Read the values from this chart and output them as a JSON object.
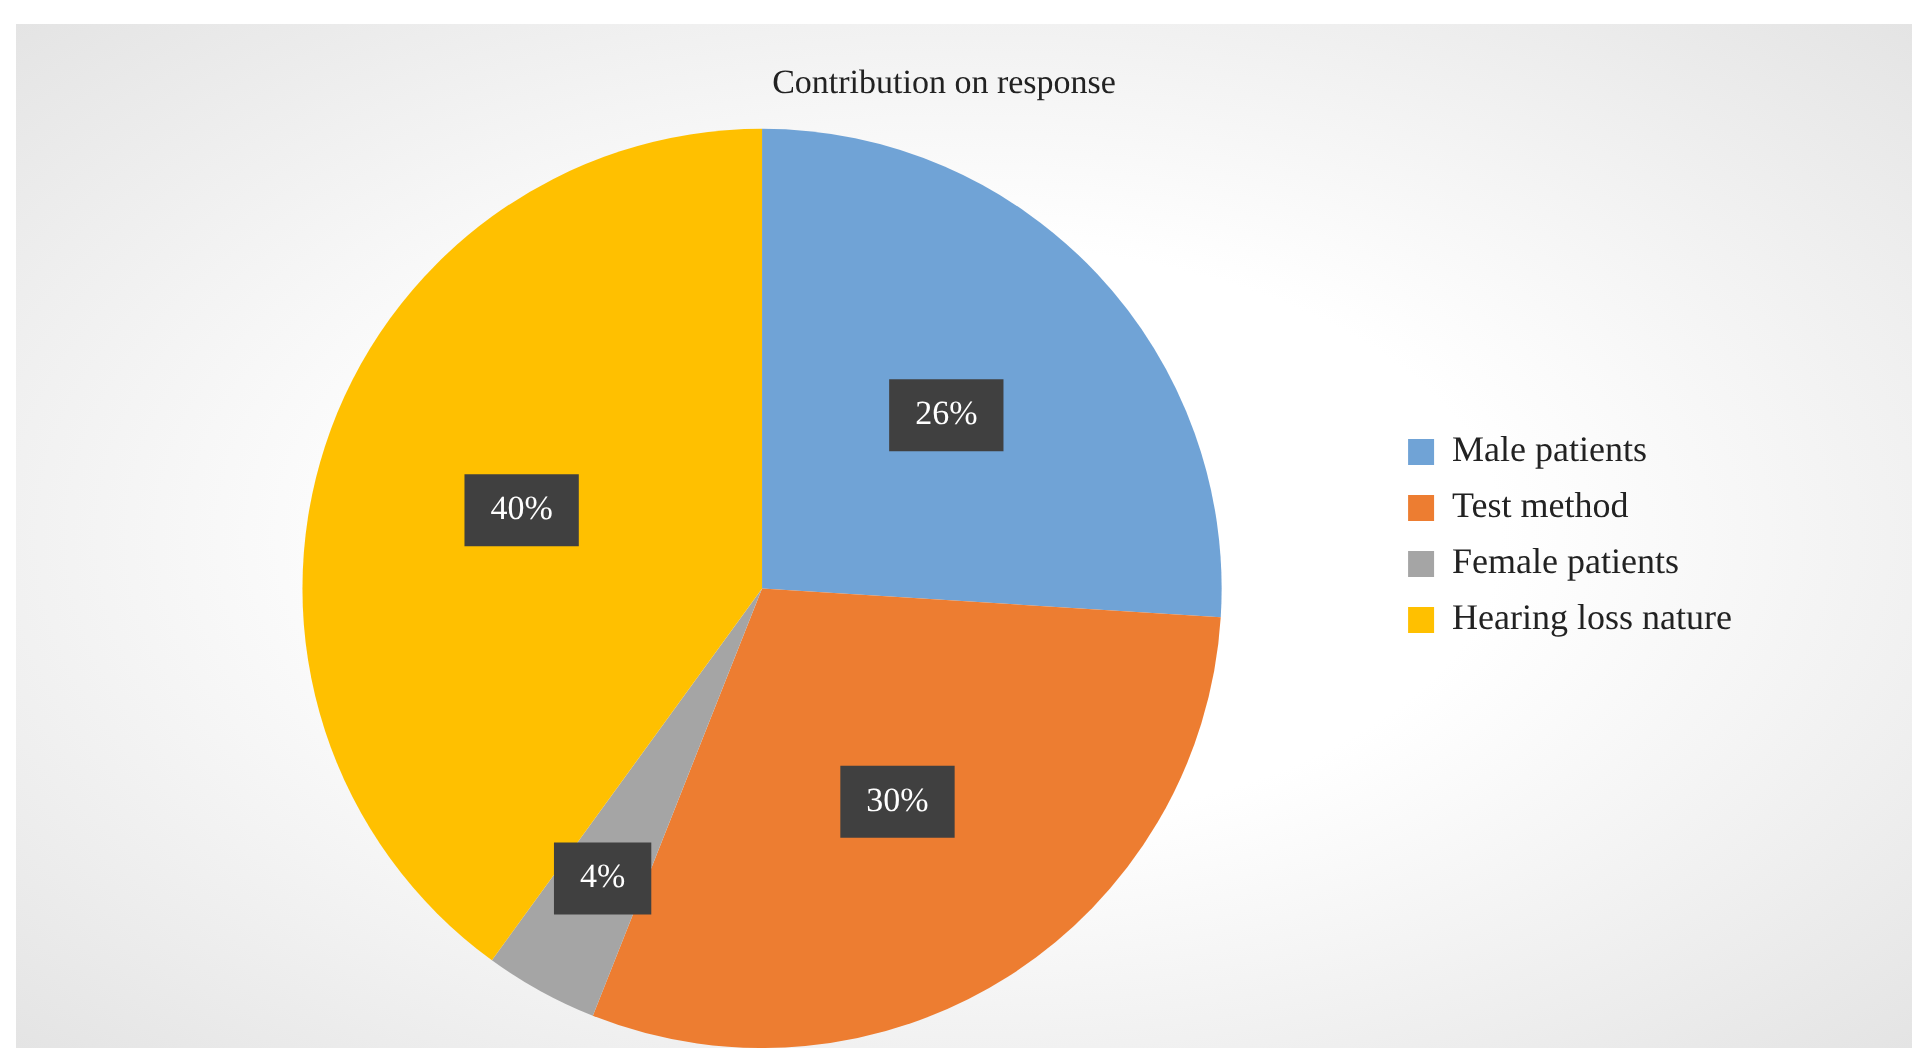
{
  "chart_data": {
    "type": "pie",
    "title": "Contribution on response",
    "categories": [
      "Male patients",
      "Test method",
      "Female patients",
      "Hearing loss nature"
    ],
    "values": [
      26,
      30,
      4,
      40
    ],
    "colors": [
      "#70a3d6",
      "#ed7d31",
      "#a5a5a5",
      "#ffc000"
    ],
    "value_labels": [
      "26%",
      "30%",
      "4%",
      "40%"
    ],
    "legend": "right"
  }
}
